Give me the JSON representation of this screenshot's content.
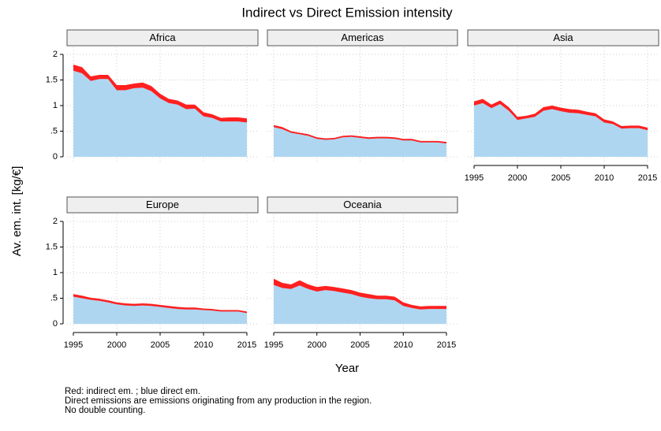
{
  "figure": {
    "title": "Indirect vs Direct Emission intensity",
    "x_label": "Year",
    "y_label": "Av. em. int. [kg/€]",
    "notes": [
      "Red: indirect em. ; blue direct em.",
      "Direct emissions are emissions originating from any production in the region.",
      "No double counting."
    ]
  },
  "chart_data": [
    {
      "type": "area",
      "stacked": true,
      "title": "Africa",
      "xaxis": false,
      "yaxis": true,
      "grid": true,
      "x": [
        1995,
        1996,
        1997,
        1998,
        1999,
        2000,
        2001,
        2002,
        2003,
        2004,
        2005,
        2006,
        2007,
        2008,
        2009,
        2010,
        2011,
        2012,
        2013,
        2014,
        2015
      ],
      "series": [
        {
          "color": "#aed6f1",
          "values": [
            1.68,
            1.63,
            1.48,
            1.52,
            1.52,
            1.3,
            1.3,
            1.34,
            1.35,
            1.28,
            1.14,
            1.05,
            1.02,
            0.93,
            0.94,
            0.79,
            0.76,
            0.69,
            0.69,
            0.69,
            0.67
          ]
        },
        {
          "color": "#ff2020",
          "values": [
            0.12,
            0.12,
            0.09,
            0.08,
            0.08,
            0.1,
            0.1,
            0.09,
            0.1,
            0.1,
            0.09,
            0.08,
            0.08,
            0.09,
            0.08,
            0.08,
            0.07,
            0.07,
            0.08,
            0.08,
            0.08
          ]
        }
      ],
      "xlim": [
        1995,
        2015
      ],
      "xticks": [
        1995,
        2000,
        2005,
        2010,
        2015
      ],
      "ylim": [
        0,
        2
      ],
      "yticks": [
        0,
        {
          "value": 0.5,
          "label": ".5"
        },
        1,
        1.5,
        2
      ]
    },
    {
      "type": "area",
      "stacked": true,
      "title": "Americas",
      "xaxis": false,
      "yaxis": false,
      "grid": true,
      "x": [
        1995,
        1996,
        1997,
        1998,
        1999,
        2000,
        2001,
        2002,
        2003,
        2004,
        2005,
        2006,
        2007,
        2008,
        2009,
        2010,
        2011,
        2012,
        2013,
        2014,
        2015
      ],
      "series": [
        {
          "color": "#aed6f1",
          "values": [
            0.58,
            0.54,
            0.47,
            0.44,
            0.41,
            0.35,
            0.33,
            0.34,
            0.38,
            0.39,
            0.37,
            0.35,
            0.36,
            0.36,
            0.35,
            0.32,
            0.32,
            0.28,
            0.28,
            0.28,
            0.26
          ]
        },
        {
          "color": "#ff2020",
          "values": [
            0.04,
            0.04,
            0.03,
            0.03,
            0.03,
            0.03,
            0.03,
            0.03,
            0.03,
            0.03,
            0.03,
            0.03,
            0.03,
            0.03,
            0.03,
            0.03,
            0.03,
            0.03,
            0.03,
            0.03,
            0.03
          ]
        }
      ],
      "xlim": [
        1995,
        2015
      ],
      "xticks": [
        1995,
        2000,
        2005,
        2010,
        2015
      ],
      "ylim": [
        0,
        2
      ],
      "yticks": [
        0,
        {
          "value": 0.5,
          "label": ".5"
        },
        1,
        1.5,
        2
      ]
    },
    {
      "type": "area",
      "stacked": true,
      "title": "Asia",
      "xaxis": true,
      "yaxis": false,
      "grid": true,
      "x": [
        1995,
        1996,
        1997,
        1998,
        1999,
        2000,
        2001,
        2002,
        2003,
        2004,
        2005,
        2006,
        2007,
        2008,
        2009,
        2010,
        2011,
        2012,
        2013,
        2014,
        2015
      ],
      "series": [
        {
          "color": "#aed6f1",
          "values": [
            1.0,
            1.05,
            0.95,
            1.03,
            0.9,
            0.72,
            0.75,
            0.78,
            0.9,
            0.93,
            0.89,
            0.86,
            0.85,
            0.82,
            0.79,
            0.67,
            0.64,
            0.55,
            0.56,
            0.56,
            0.52
          ]
        },
        {
          "color": "#ff2020",
          "values": [
            0.08,
            0.08,
            0.07,
            0.07,
            0.07,
            0.06,
            0.05,
            0.06,
            0.07,
            0.07,
            0.07,
            0.07,
            0.07,
            0.06,
            0.06,
            0.06,
            0.05,
            0.05,
            0.05,
            0.05,
            0.05
          ]
        }
      ],
      "xlim": [
        1995,
        2015
      ],
      "xticks": [
        1995,
        2000,
        2005,
        2010,
        2015
      ],
      "ylim": [
        0,
        2
      ],
      "yticks": [
        0,
        {
          "value": 0.5,
          "label": ".5"
        },
        1,
        1.5,
        2
      ]
    },
    {
      "type": "area",
      "stacked": true,
      "title": "Europe",
      "xaxis": true,
      "yaxis": true,
      "grid": true,
      "x": [
        1995,
        1996,
        1997,
        1998,
        1999,
        2000,
        2001,
        2002,
        2003,
        2004,
        2005,
        2006,
        2007,
        2008,
        2009,
        2010,
        2011,
        2012,
        2013,
        2014,
        2015
      ],
      "series": [
        {
          "color": "#aed6f1",
          "values": [
            0.53,
            0.5,
            0.47,
            0.45,
            0.42,
            0.38,
            0.36,
            0.35,
            0.36,
            0.35,
            0.33,
            0.31,
            0.29,
            0.28,
            0.28,
            0.27,
            0.26,
            0.24,
            0.24,
            0.24,
            0.21
          ]
        },
        {
          "color": "#ff2020",
          "values": [
            0.05,
            0.05,
            0.04,
            0.04,
            0.04,
            0.04,
            0.04,
            0.04,
            0.04,
            0.04,
            0.04,
            0.04,
            0.04,
            0.04,
            0.04,
            0.03,
            0.03,
            0.03,
            0.03,
            0.03,
            0.03
          ]
        }
      ],
      "xlim": [
        1995,
        2015
      ],
      "xticks": [
        1995,
        2000,
        2005,
        2010,
        2015
      ],
      "ylim": [
        0,
        2
      ],
      "yticks": [
        0,
        {
          "value": 0.5,
          "label": ".5"
        },
        1,
        1.5,
        2
      ]
    },
    {
      "type": "area",
      "stacked": true,
      "title": "Oceania",
      "xaxis": true,
      "yaxis": false,
      "grid": true,
      "x": [
        1995,
        1996,
        1997,
        1998,
        1999,
        2000,
        2001,
        2002,
        2003,
        2004,
        2005,
        2006,
        2007,
        2008,
        2009,
        2010,
        2011,
        2012,
        2013,
        2014,
        2015
      ],
      "series": [
        {
          "color": "#aed6f1",
          "values": [
            0.76,
            0.7,
            0.68,
            0.75,
            0.68,
            0.63,
            0.66,
            0.64,
            0.61,
            0.58,
            0.53,
            0.5,
            0.48,
            0.48,
            0.46,
            0.35,
            0.31,
            0.28,
            0.29,
            0.29,
            0.29
          ]
        },
        {
          "color": "#ff2020",
          "values": [
            0.12,
            0.1,
            0.09,
            0.1,
            0.09,
            0.09,
            0.08,
            0.08,
            0.08,
            0.08,
            0.08,
            0.08,
            0.07,
            0.07,
            0.07,
            0.07,
            0.06,
            0.06,
            0.06,
            0.06,
            0.06
          ]
        }
      ],
      "xlim": [
        1995,
        2015
      ],
      "xticks": [
        1995,
        2000,
        2005,
        2010,
        2015
      ],
      "ylim": [
        0,
        2
      ],
      "yticks": [
        0,
        {
          "value": 0.5,
          "label": ".5"
        },
        1,
        1.5,
        2
      ]
    }
  ]
}
